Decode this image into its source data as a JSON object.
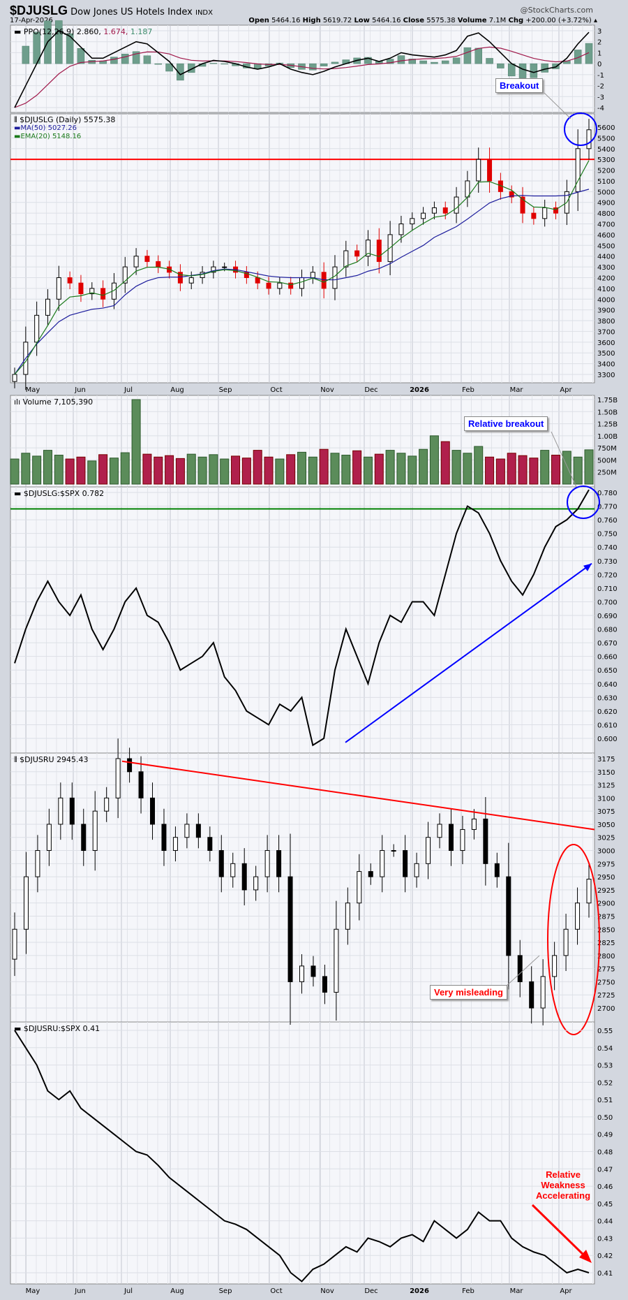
{
  "header": {
    "symbol": "$DJUSLG",
    "name": "Dow Jones US Hotels Index",
    "exchange": "INDX",
    "date": "17-Apr-2026",
    "watermark": "@StockCharts.com",
    "quote": {
      "open_label": "Open",
      "open": "5464.16",
      "high_label": "High",
      "high": "5619.72",
      "low_label": "Low",
      "low": "5464.16",
      "close_label": "Close",
      "close": "5575.38",
      "volume_label": "Volume",
      "volume": "7.1M",
      "chg_label": "Chg",
      "chg": "+200.00 (+3.72%)"
    }
  },
  "legends": {
    "ppo": "PPO(12,26,9) 2.860,",
    "ppo_signal": "1.674,",
    "ppo_hist": "1.187",
    "price": "$DJUSLG (Daily) 5575.38",
    "ma50": "MA(50) 5027.26",
    "ema20": "EMA(20) 5148.16",
    "volume": "Volume 7,105,390",
    "ratio1": "$DJUSLG:$SPX 0.782",
    "djusru": "$DJUSRU 2945.43",
    "ratio2": "$DJUSRU:$SPX 0.41"
  },
  "annotations": {
    "breakout": "Breakout",
    "relative_breakout": "Relative breakout",
    "very_misleading": "Very misleading",
    "weakness": [
      "Relative",
      "Weakness",
      "Accelerating"
    ]
  },
  "colors": {
    "up": "#5b8c5a",
    "down": "#b0204c",
    "ma50": "#1c1c9c",
    "ema20": "#1a7a1a",
    "ppo_signal": "#a0184a",
    "hist": "#6e9e8c",
    "red": "#ff0000",
    "blue": "#0000ff",
    "green": "#008000"
  },
  "chart_data": {
    "type": "line",
    "x_ticks": [
      "May",
      "Jun",
      "Jul",
      "Aug",
      "Sep",
      "Oct",
      "Nov",
      "Dec",
      "2026",
      "Feb",
      "Mar",
      "Apr"
    ],
    "panels": [
      {
        "id": "ppo",
        "type": "line",
        "yticks": [
          3,
          2,
          1,
          0,
          -1,
          -2,
          -3,
          -4
        ],
        "ylim": [
          -4.3,
          3.6
        ],
        "values": [
          -4,
          -2,
          0,
          2,
          3,
          2.5,
          1.5,
          0.5,
          0.5,
          1,
          1.5,
          2,
          1.8,
          1,
          0.2,
          -1,
          -0.5,
          0,
          0.3,
          0.2,
          0,
          -0.3,
          -0.5,
          -0.3,
          0,
          -0.5,
          -0.8,
          -1,
          -0.7,
          -0.3,
          0,
          0.3,
          0.5,
          0.2,
          0.5,
          1,
          0.8,
          0.7,
          0.6,
          0.8,
          1.2,
          2.5,
          2.8,
          2,
          1,
          0,
          -0.5,
          -0.8,
          -0.5,
          -0.3,
          0.5,
          1.8,
          2.86
        ]
      },
      {
        "id": "price",
        "type": "candlestick",
        "yticks": [
          5600,
          5500,
          5400,
          5300,
          5200,
          5100,
          5000,
          4900,
          4800,
          4700,
          4600,
          4500,
          4400,
          4300,
          4200,
          4100,
          4000,
          3900,
          3800,
          3700,
          3600,
          3500,
          3400,
          3300
        ],
        "ylim": [
          3250,
          5700
        ],
        "hline": 5300,
        "values": [
          3300,
          3600,
          3850,
          4000,
          4200,
          4150,
          4050,
          4100,
          4000,
          4150,
          4300,
          4400,
          4350,
          4300,
          4250,
          4150,
          4200,
          4250,
          4300,
          4300,
          4250,
          4200,
          4150,
          4100,
          4150,
          4100,
          4200,
          4250,
          4100,
          4300,
          4450,
          4400,
          4550,
          4350,
          4600,
          4700,
          4750,
          4800,
          4850,
          4800,
          4950,
          5100,
          5300,
          5100,
          5000,
          4950,
          4800,
          4750,
          4850,
          4800,
          5000,
          5400,
          5575.38
        ]
      },
      {
        "id": "volume",
        "type": "bar",
        "unit": "M",
        "yticks": [
          "1.75B",
          "1.50B",
          "1.25B",
          "1.00B",
          "750M",
          "500M",
          "250M"
        ],
        "ytick_values": [
          1750,
          1500,
          1250,
          1000,
          750,
          500,
          250
        ],
        "ylim": [
          0,
          1850
        ],
        "values": [
          520,
          640,
          580,
          700,
          600,
          520,
          560,
          480,
          610,
          540,
          650,
          1750,
          620,
          560,
          590,
          530,
          620,
          560,
          610,
          520,
          580,
          540,
          700,
          560,
          520,
          610,
          660,
          560,
          720,
          640,
          600,
          690,
          560,
          620,
          700,
          640,
          580,
          720,
          1000,
          880,
          700,
          640,
          780,
          560,
          520,
          640,
          590,
          540,
          700,
          600,
          680,
          560,
          710
        ]
      },
      {
        "id": "ratio_lg_spx",
        "type": "line",
        "yticks": [
          0.78,
          0.77,
          0.76,
          0.75,
          0.74,
          0.73,
          0.72,
          0.71,
          0.7,
          0.69,
          0.68,
          0.67,
          0.66,
          0.65,
          0.64,
          0.63,
          0.62,
          0.61,
          0.6
        ],
        "ylim": [
          0.594,
          0.786
        ],
        "hline": 0.768,
        "trendline": [
          [
            0.597
          ],
          [
            0.728
          ]
        ],
        "values": [
          0.655,
          0.68,
          0.7,
          0.715,
          0.7,
          0.69,
          0.705,
          0.68,
          0.665,
          0.68,
          0.7,
          0.71,
          0.69,
          0.685,
          0.67,
          0.65,
          0.655,
          0.66,
          0.67,
          0.645,
          0.635,
          0.62,
          0.615,
          0.61,
          0.625,
          0.62,
          0.63,
          0.595,
          0.6,
          0.65,
          0.68,
          0.66,
          0.64,
          0.67,
          0.69,
          0.685,
          0.7,
          0.7,
          0.69,
          0.72,
          0.75,
          0.77,
          0.765,
          0.75,
          0.73,
          0.715,
          0.705,
          0.72,
          0.74,
          0.755,
          0.76,
          0.768,
          0.782
        ]
      },
      {
        "id": "djusru",
        "type": "candlestick",
        "yticks": [
          3175,
          3150,
          3125,
          3100,
          3075,
          3050,
          3025,
          3000,
          2975,
          2950,
          2925,
          2900,
          2875,
          2850,
          2825,
          2800,
          2775,
          2750,
          2725,
          2700
        ],
        "ylim": [
          2680,
          3195
        ],
        "trendline": [
          3170,
          3040
        ],
        "values": [
          2850,
          2950,
          3000,
          3050,
          3100,
          3050,
          3000,
          3075,
          3100,
          3175,
          3150,
          3100,
          3050,
          3000,
          3025,
          3050,
          3025,
          3000,
          2950,
          2975,
          2925,
          2950,
          3000,
          2950,
          2750,
          2780,
          2760,
          2730,
          2850,
          2900,
          2960,
          2950,
          3000,
          3000,
          2950,
          2975,
          3025,
          3050,
          3000,
          3040,
          3060,
          2975,
          2950,
          2800,
          2750,
          2700,
          2760,
          2800,
          2850,
          2900,
          2945.43
        ]
      },
      {
        "id": "ratio_ru_spx",
        "type": "line",
        "yticks": [
          0.55,
          0.54,
          0.53,
          0.52,
          0.51,
          0.5,
          0.49,
          0.48,
          0.47,
          0.46,
          0.45,
          0.44,
          0.43,
          0.42,
          0.41
        ],
        "ylim": [
          0.403,
          0.556
        ],
        "values": [
          0.55,
          0.54,
          0.53,
          0.515,
          0.51,
          0.515,
          0.505,
          0.5,
          0.495,
          0.49,
          0.485,
          0.48,
          0.478,
          0.472,
          0.465,
          0.46,
          0.455,
          0.45,
          0.445,
          0.44,
          0.438,
          0.435,
          0.43,
          0.425,
          0.42,
          0.41,
          0.405,
          0.412,
          0.415,
          0.42,
          0.425,
          0.422,
          0.43,
          0.428,
          0.425,
          0.43,
          0.432,
          0.428,
          0.44,
          0.435,
          0.43,
          0.435,
          0.445,
          0.44,
          0.44,
          0.43,
          0.425,
          0.422,
          0.42,
          0.415,
          0.41,
          0.412,
          0.41
        ]
      }
    ]
  }
}
